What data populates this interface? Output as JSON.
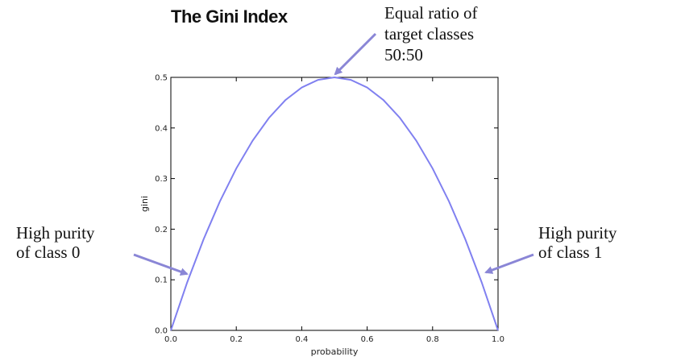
{
  "chart_data": {
    "type": "line",
    "title": "The Gini Index",
    "xlabel": "probability",
    "ylabel": "gini",
    "xlim": [
      0.0,
      1.0
    ],
    "ylim": [
      0.0,
      0.5
    ],
    "x_ticks": [
      "0.0",
      "0.2",
      "0.4",
      "0.6",
      "0.8",
      "1.0"
    ],
    "y_ticks": [
      "0.0",
      "0.1",
      "0.2",
      "0.3",
      "0.4",
      "0.5"
    ],
    "grid": false,
    "series": [
      {
        "color": "#8080f0",
        "x": [
          0.0,
          0.05,
          0.1,
          0.15,
          0.2,
          0.25,
          0.3,
          0.35,
          0.4,
          0.45,
          0.5,
          0.55,
          0.6,
          0.65,
          0.7,
          0.75,
          0.8,
          0.85,
          0.9,
          0.95,
          1.0
        ],
        "y": [
          0.0,
          0.095,
          0.18,
          0.255,
          0.32,
          0.375,
          0.42,
          0.455,
          0.48,
          0.495,
          0.5,
          0.495,
          0.48,
          0.455,
          0.42,
          0.375,
          0.32,
          0.255,
          0.18,
          0.095,
          0.0
        ]
      }
    ],
    "annotations": [
      {
        "lines": [
          "Equal ratio of",
          "target classes",
          "50:50"
        ],
        "points_to": [
          0.5,
          0.5
        ]
      },
      {
        "lines": [
          "High purity",
          "of class 0"
        ],
        "points_to": [
          0.05,
          0.11
        ]
      },
      {
        "lines": [
          "High purity",
          "of class 1"
        ],
        "points_to": [
          0.95,
          0.11
        ]
      }
    ],
    "arrow_color": "#8a86d6"
  }
}
